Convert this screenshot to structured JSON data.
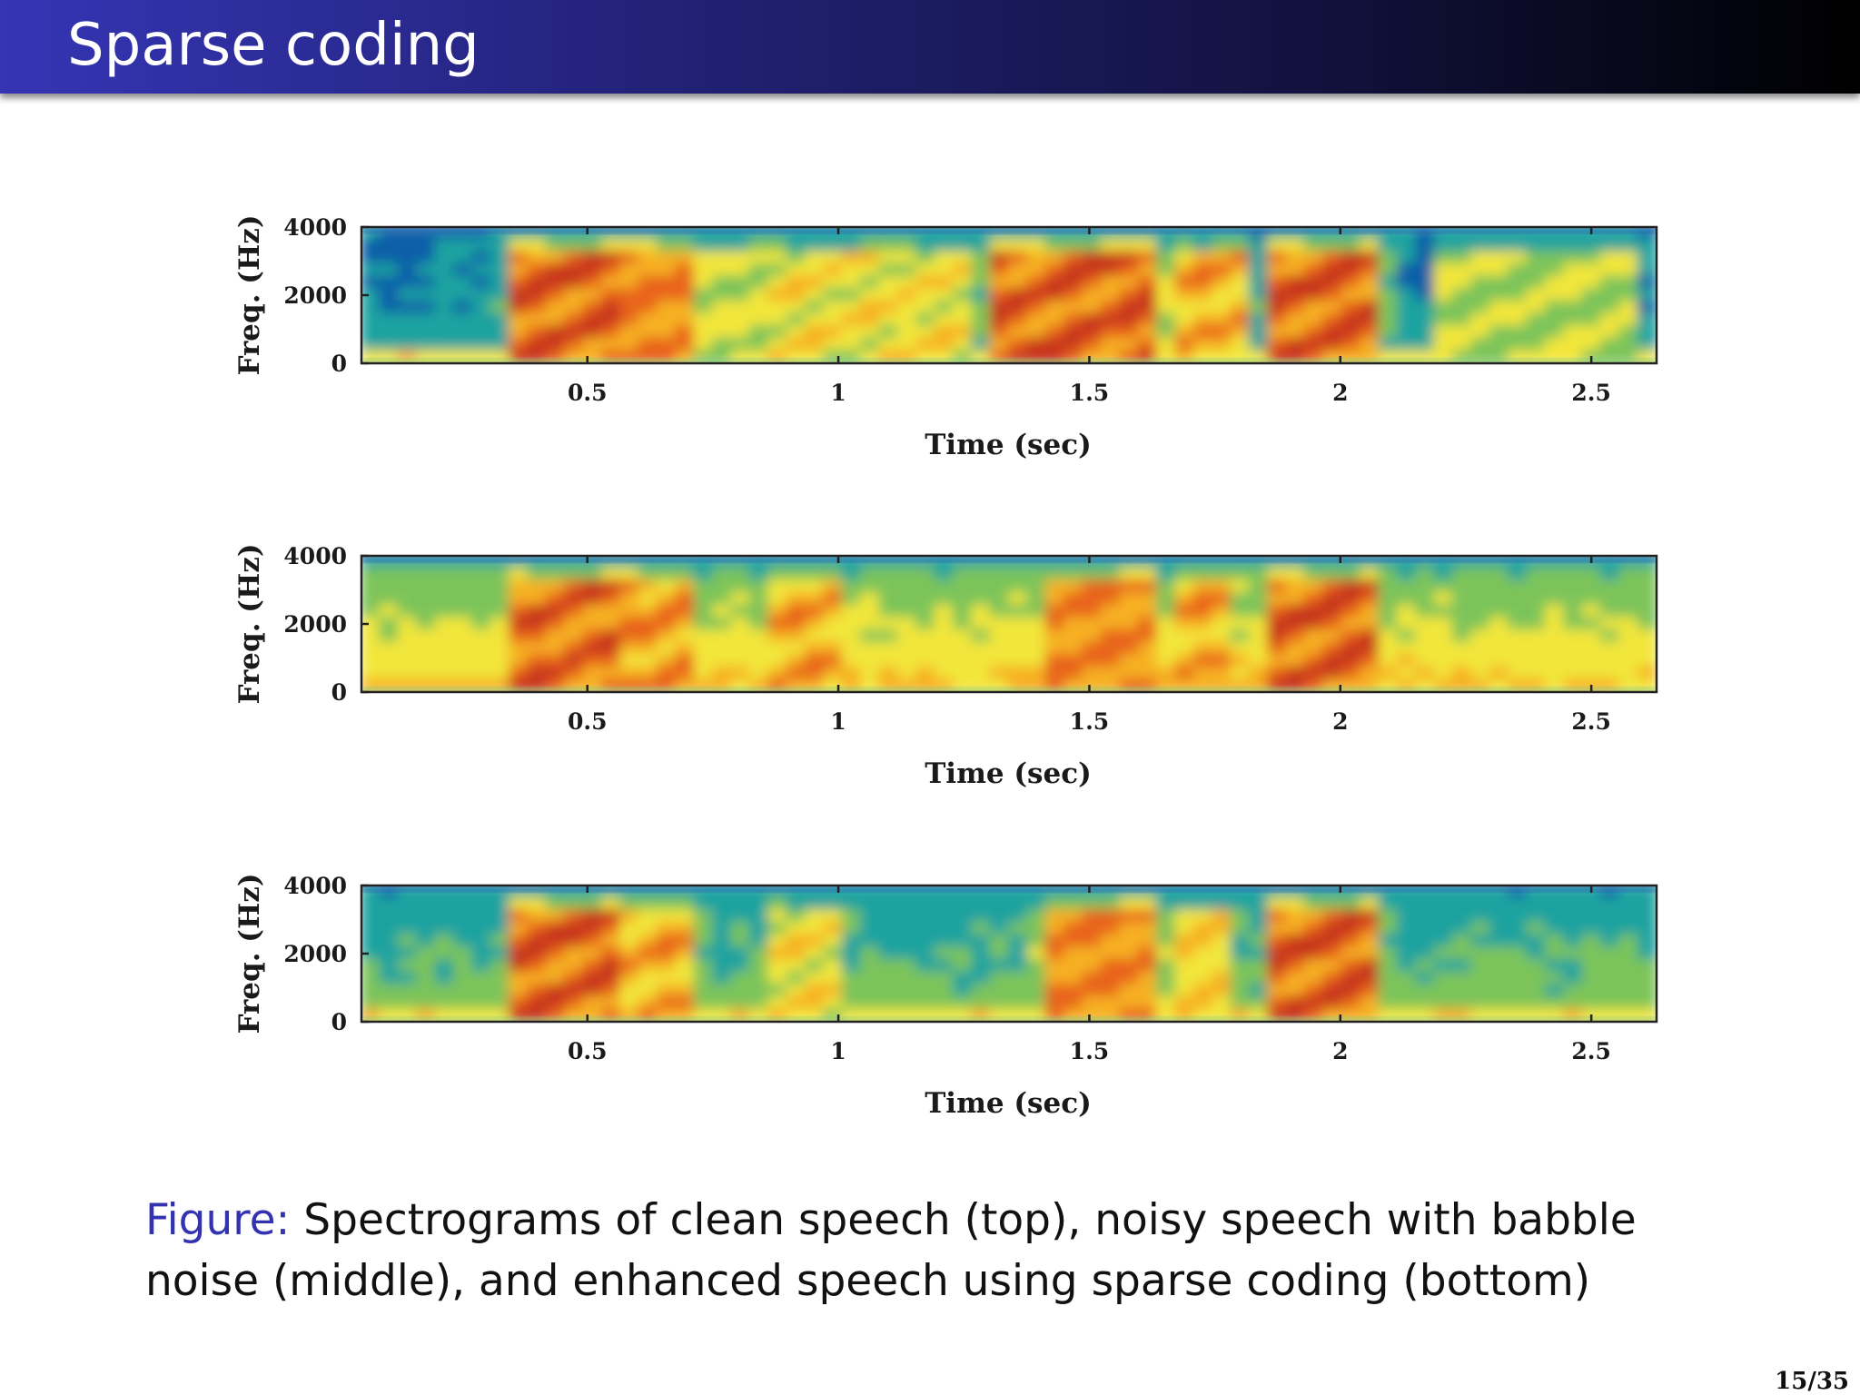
{
  "slide": {
    "title": "Sparse coding",
    "caption_prefix": "Figure:",
    "caption_text": " Spectrograms of clean speech (top), noisy speech with babble noise (middle), and enhanced speech using sparse coding (bottom)",
    "page_number": "15/35"
  },
  "figure": {
    "colormap": [
      "#0f5fa8",
      "#1aa3a0",
      "#7cc45a",
      "#f2e63a",
      "#f6b024",
      "#e8641c",
      "#c8361a"
    ],
    "panels": [
      {
        "ylabel": "Freq. (Hz)",
        "xlabel": "Time (sec)",
        "yticks": [
          "4000",
          "2000",
          "0"
        ],
        "xticks": [
          "0.5",
          "1",
          "1.5",
          "2",
          "2.5"
        ],
        "noise_floor": 0.22,
        "bursts": [
          [
            0.35,
            0.55,
            0.95
          ],
          [
            0.55,
            0.72,
            0.85
          ],
          [
            0.72,
            0.85,
            0.55
          ],
          [
            0.85,
            1.25,
            0.6
          ],
          [
            1.3,
            1.65,
            0.95
          ],
          [
            1.68,
            1.82,
            0.75
          ],
          [
            1.87,
            2.08,
            0.95
          ],
          [
            2.2,
            2.58,
            0.5
          ]
        ]
      },
      {
        "ylabel": "Freq. (Hz)",
        "xlabel": "Time (sec)",
        "yticks": [
          "4000",
          "2000",
          "0"
        ],
        "xticks": [
          "0.5",
          "1",
          "1.5",
          "2",
          "2.5"
        ],
        "noise_floor": 0.6,
        "bursts": [
          [
            0.35,
            0.55,
            0.9
          ],
          [
            0.55,
            0.72,
            0.8
          ],
          [
            0.85,
            1.0,
            0.75
          ],
          [
            1.4,
            1.65,
            0.85
          ],
          [
            1.68,
            1.8,
            0.75
          ],
          [
            1.87,
            2.08,
            0.95
          ]
        ]
      },
      {
        "ylabel": "Freq. (Hz)",
        "xlabel": "Time (sec)",
        "yticks": [
          "4000",
          "2000",
          "0"
        ],
        "xticks": [
          "0.5",
          "1",
          "1.5",
          "2",
          "2.5"
        ],
        "noise_floor": 0.38,
        "bursts": [
          [
            0.35,
            0.55,
            0.95
          ],
          [
            0.55,
            0.72,
            0.75
          ],
          [
            0.85,
            1.02,
            0.6
          ],
          [
            1.4,
            1.65,
            0.85
          ],
          [
            1.68,
            1.8,
            0.65
          ],
          [
            1.87,
            2.08,
            0.95
          ]
        ]
      }
    ]
  }
}
